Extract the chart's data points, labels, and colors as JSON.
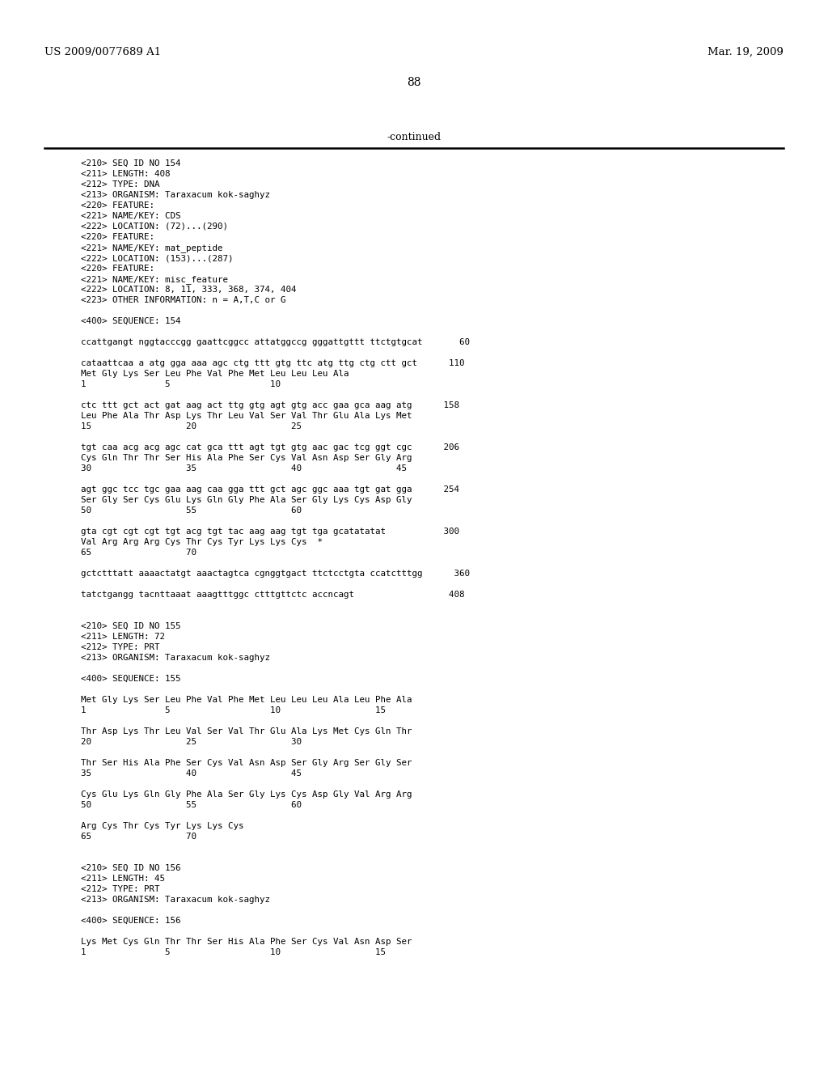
{
  "header_left": "US 2009/0077689 A1",
  "header_right": "Mar. 19, 2009",
  "page_number": "88",
  "continued_text": "-continued",
  "background_color": "#ffffff",
  "text_color": "#000000",
  "content": [
    "<210> SEQ ID NO 154",
    "<211> LENGTH: 408",
    "<212> TYPE: DNA",
    "<213> ORGANISM: Taraxacum kok-saghyz",
    "<220> FEATURE:",
    "<221> NAME/KEY: CDS",
    "<222> LOCATION: (72)...(290)",
    "<220> FEATURE:",
    "<221> NAME/KEY: mat_peptide",
    "<222> LOCATION: (153)...(287)",
    "<220> FEATURE:",
    "<221> NAME/KEY: misc_feature",
    "<222> LOCATION: 8, 11, 333, 368, 374, 404",
    "<223> OTHER INFORMATION: n = A,T,C or G",
    "",
    "<400> SEQUENCE: 154",
    "",
    "ccattgangt nggtacccgg gaattcggcc attatggccg gggattgttt ttctgtgcat       60",
    "",
    "cataattcaa a atg gga aaa agc ctg ttt gtg ttc atg ttg ctg ctt gct      110",
    "Met Gly Lys Ser Leu Phe Val Phe Met Leu Leu Leu Ala",
    "1               5                   10",
    "",
    "ctc ttt gct act gat aag act ttg gtg agt gtg acc gaa gca aag atg      158",
    "Leu Phe Ala Thr Asp Lys Thr Leu Val Ser Val Thr Glu Ala Lys Met",
    "15                  20                  25",
    "",
    "tgt caa acg acg agc cat gca ttt agt tgt gtg aac gac tcg ggt cgc      206",
    "Cys Gln Thr Thr Ser His Ala Phe Ser Cys Val Asn Asp Ser Gly Arg",
    "30                  35                  40                  45",
    "",
    "agt ggc tcc tgc gaa aag caa gga ttt gct agc ggc aaa tgt gat gga      254",
    "Ser Gly Ser Cys Glu Lys Gln Gly Phe Ala Ser Gly Lys Cys Asp Gly",
    "50                  55                  60",
    "",
    "gta cgt cgt cgt tgt acg tgt tac aag aag tgt tga gcatatatat           300",
    "Val Arg Arg Arg Cys Thr Cys Tyr Lys Lys Cys  *",
    "65                  70",
    "",
    "gctctttatt aaaactatgt aaactagtca cgnggtgact ttctcctgta ccatctttgg      360",
    "",
    "tatctgangg tacnttaaat aaagtttggc ctttgttctc accncagt                  408",
    "",
    "",
    "<210> SEQ ID NO 155",
    "<211> LENGTH: 72",
    "<212> TYPE: PRT",
    "<213> ORGANISM: Taraxacum kok-saghyz",
    "",
    "<400> SEQUENCE: 155",
    "",
    "Met Gly Lys Ser Leu Phe Val Phe Met Leu Leu Leu Ala Leu Phe Ala",
    "1               5                   10                  15",
    "",
    "Thr Asp Lys Thr Leu Val Ser Val Thr Glu Ala Lys Met Cys Gln Thr",
    "20                  25                  30",
    "",
    "Thr Ser His Ala Phe Ser Cys Val Asn Asp Ser Gly Arg Ser Gly Ser",
    "35                  40                  45",
    "",
    "Cys Glu Lys Gln Gly Phe Ala Ser Gly Lys Cys Asp Gly Val Arg Arg",
    "50                  55                  60",
    "",
    "Arg Cys Thr Cys Tyr Lys Lys Cys",
    "65                  70",
    "",
    "",
    "<210> SEQ ID NO 156",
    "<211> LENGTH: 45",
    "<212> TYPE: PRT",
    "<213> ORGANISM: Taraxacum kok-saghyz",
    "",
    "<400> SEQUENCE: 156",
    "",
    "Lys Met Cys Gln Thr Thr Ser His Ala Phe Ser Cys Val Asn Asp Ser",
    "1               5                   10                  15"
  ]
}
